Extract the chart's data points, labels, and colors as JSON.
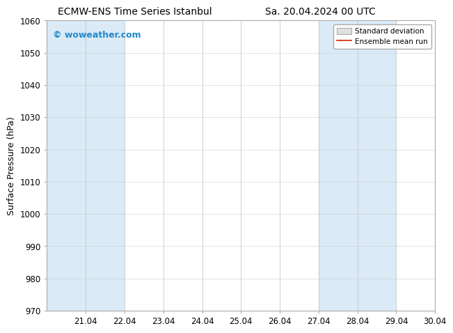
{
  "title_left": "ECMW-ENS Time Series Istanbul",
  "title_right": "Sa. 20.04.2024 00 UTC",
  "ylabel": "Surface Pressure (hPa)",
  "ylim": [
    970,
    1060
  ],
  "ytick_step": 10,
  "xtick_labels": [
    "21.04",
    "22.04",
    "23.04",
    "24.04",
    "25.04",
    "26.04",
    "27.04",
    "28.04",
    "29.04",
    "30.04"
  ],
  "xtick_positions": [
    1,
    2,
    3,
    4,
    5,
    6,
    7,
    8,
    9,
    10
  ],
  "xlim": [
    0,
    10
  ],
  "weekend_bands": [
    {
      "xstart": 0,
      "xend": 2
    },
    {
      "xstart": 7,
      "xend": 9
    }
  ],
  "weekend_color": "#daeaf7",
  "background_color": "#ffffff",
  "plot_bg_color": "#ffffff",
  "watermark_text": "© woweather.com",
  "watermark_color": "#2288cc",
  "legend_std_facecolor": "#e0e0e0",
  "legend_std_edgecolor": "#aaaaaa",
  "legend_mean_color": "#cc2200",
  "title_fontsize": 10,
  "tick_fontsize": 8.5,
  "ylabel_fontsize": 9,
  "watermark_fontsize": 9
}
